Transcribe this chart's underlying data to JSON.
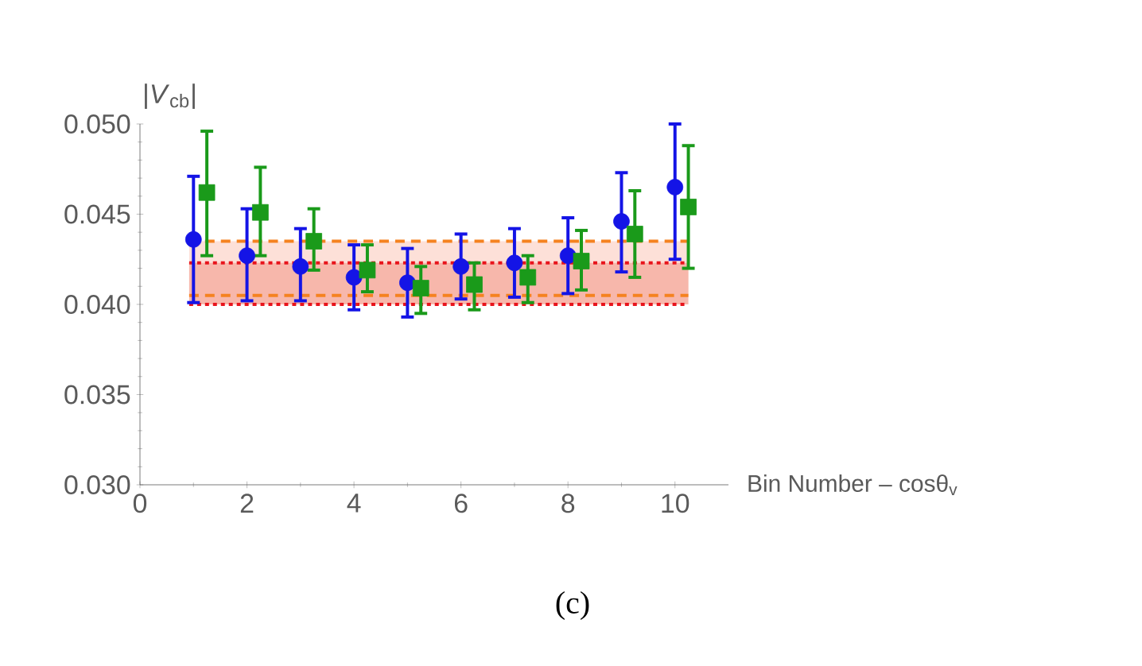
{
  "chart_data": {
    "type": "scatter",
    "ylabel": "|*V*$_{cb}$|",
    "xlabel": "Bin Number – cosθ$_{v}$",
    "xlim": [
      0,
      11
    ],
    "xticks": [
      0,
      2,
      4,
      6,
      8,
      10
    ],
    "ylim": [
      0.03,
      0.05
    ],
    "yticks": [
      {
        "value": 0.03,
        "label": "0.030"
      },
      {
        "value": 0.035,
        "label": "0.035"
      },
      {
        "value": 0.04,
        "label": "0.040"
      },
      {
        "value": 0.045,
        "label": "0.045"
      },
      {
        "value": 0.05,
        "label": "0.050"
      }
    ],
    "series": [
      {
        "color": "#1414e6",
        "marker": "circle",
        "x": [
          1,
          2,
          3,
          4,
          5,
          6,
          7,
          8,
          9,
          10
        ],
        "values": [
          0.0436,
          0.0427,
          0.0421,
          0.0415,
          0.0412,
          0.0421,
          0.0423,
          0.0427,
          0.0446,
          0.0465
        ],
        "errors": [
          [
            0.0401,
            0.0471
          ],
          [
            0.0402,
            0.0453
          ],
          [
            0.0402,
            0.0442
          ],
          [
            0.0397,
            0.0433
          ],
          [
            0.0393,
            0.0431
          ],
          [
            0.0403,
            0.0439
          ],
          [
            0.0404,
            0.0442
          ],
          [
            0.0406,
            0.0448
          ],
          [
            0.0418,
            0.0473
          ],
          [
            0.0425,
            0.05
          ]
        ]
      },
      {
        "color": "#1a9a1a",
        "marker": "square",
        "x": [
          1.25,
          2.25,
          3.25,
          4.25,
          5.25,
          6.25,
          7.25,
          8.25,
          9.25,
          10.25
        ],
        "values": [
          0.0462,
          0.0451,
          0.0435,
          0.0419,
          0.0409,
          0.0411,
          0.0415,
          0.0424,
          0.0439,
          0.0454
        ],
        "errors": [
          [
            0.0427,
            0.0496
          ],
          [
            0.0427,
            0.0476
          ],
          [
            0.0419,
            0.0453
          ],
          [
            0.0407,
            0.0433
          ],
          [
            0.0395,
            0.0421
          ],
          [
            0.0397,
            0.0423
          ],
          [
            0.0401,
            0.0427
          ],
          [
            0.0408,
            0.0441
          ],
          [
            0.0415,
            0.0463
          ],
          [
            0.042,
            0.0488
          ]
        ]
      }
    ],
    "bands": [
      {
        "axis": "y",
        "from": 0.0405,
        "to": 0.0435,
        "color": "#fde0d8"
      },
      {
        "axis": "y",
        "from": 0.04,
        "to": 0.0423,
        "color": "#f7b7ab"
      }
    ],
    "ref_lines": [
      {
        "axis": "y",
        "value": 0.0405,
        "color": "#f58220",
        "line_style": "dashed"
      },
      {
        "axis": "y",
        "value": 0.0435,
        "color": "#f58220",
        "line_style": "dashed"
      },
      {
        "axis": "y",
        "value": 0.04,
        "color": "#e8141c",
        "line_style": "dotted"
      },
      {
        "axis": "y",
        "value": 0.0423,
        "color": "#e8141c",
        "line_style": "dotted"
      }
    ],
    "annotations": [
      "(c)"
    ]
  }
}
